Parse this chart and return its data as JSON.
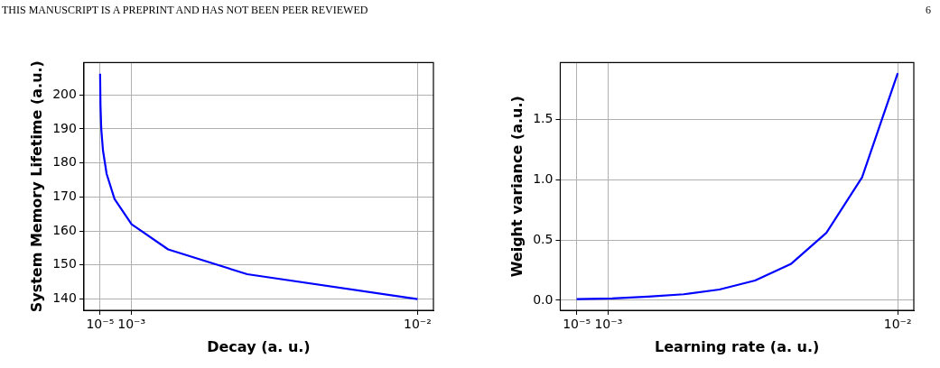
{
  "chart_data": [
    {
      "type": "line",
      "xlabel": "Decay (a. u.)",
      "ylabel": "System Memory Lifetime (a.u.)",
      "annotations": [
        "THIS MANUSCRIPT IS A PREPRINT AND HAS NOT BEEN PEER REVIEWED"
      ],
      "x": [
        1e-05,
        2.15e-05,
        4.64e-05,
        0.0001,
        0.000215,
        0.000464,
        0.001,
        0.00215,
        0.00464,
        0.01
      ],
      "series": [
        {
          "color": "#0000ff",
          "values": [
            206.2,
            197,
            190,
            183.7,
            176.8,
            169.4,
            162,
            154.6,
            147.3,
            140
          ]
        }
      ],
      "xlim": [
        -0.0005,
        0.0105
      ],
      "xticks": [
        {
          "value": 1e-05,
          "label": "10⁻⁵"
        },
        {
          "value": 0.001,
          "label": "10⁻³"
        },
        {
          "value": 0.01,
          "label": "10⁻²"
        }
      ],
      "ylim": [
        136.7,
        209.5
      ],
      "yticks": [
        140,
        150,
        160,
        170,
        180,
        190,
        200
      ],
      "grid": true,
      "legend": false,
      "marker": "none",
      "line_style": "solid"
    },
    {
      "type": "line",
      "xlabel": "Learning rate (a. u.)",
      "ylabel": "Weight variance (a.u.)",
      "annotations": [
        "6"
      ],
      "x": [
        1e-05,
        0.00112,
        0.00223,
        0.00334,
        0.00445,
        0.00556,
        0.00667,
        0.00778,
        0.00889,
        0.01
      ],
      "series": [
        {
          "color": "#0000ff",
          "values": [
            0.01,
            0.015,
            0.03,
            0.05,
            0.089,
            0.164,
            0.3,
            0.56,
            1.02,
            1.885
          ]
        }
      ],
      "xlim": [
        -0.0005,
        0.0105
      ],
      "xticks": [
        {
          "value": 1e-05,
          "label": "10⁻⁵"
        },
        {
          "value": 0.001,
          "label": "10⁻³"
        },
        {
          "value": 0.01,
          "label": "10⁻²"
        }
      ],
      "ylim": [
        -0.083,
        1.973
      ],
      "yticks": [
        {
          "value": 0,
          "label": "0.0"
        },
        {
          "value": 0.5,
          "label": "0.5"
        },
        {
          "value": 1,
          "label": "1.0"
        },
        {
          "value": 1.5,
          "label": "1.5"
        }
      ],
      "grid": true,
      "legend": false,
      "marker": "none",
      "line_style": "solid"
    }
  ]
}
